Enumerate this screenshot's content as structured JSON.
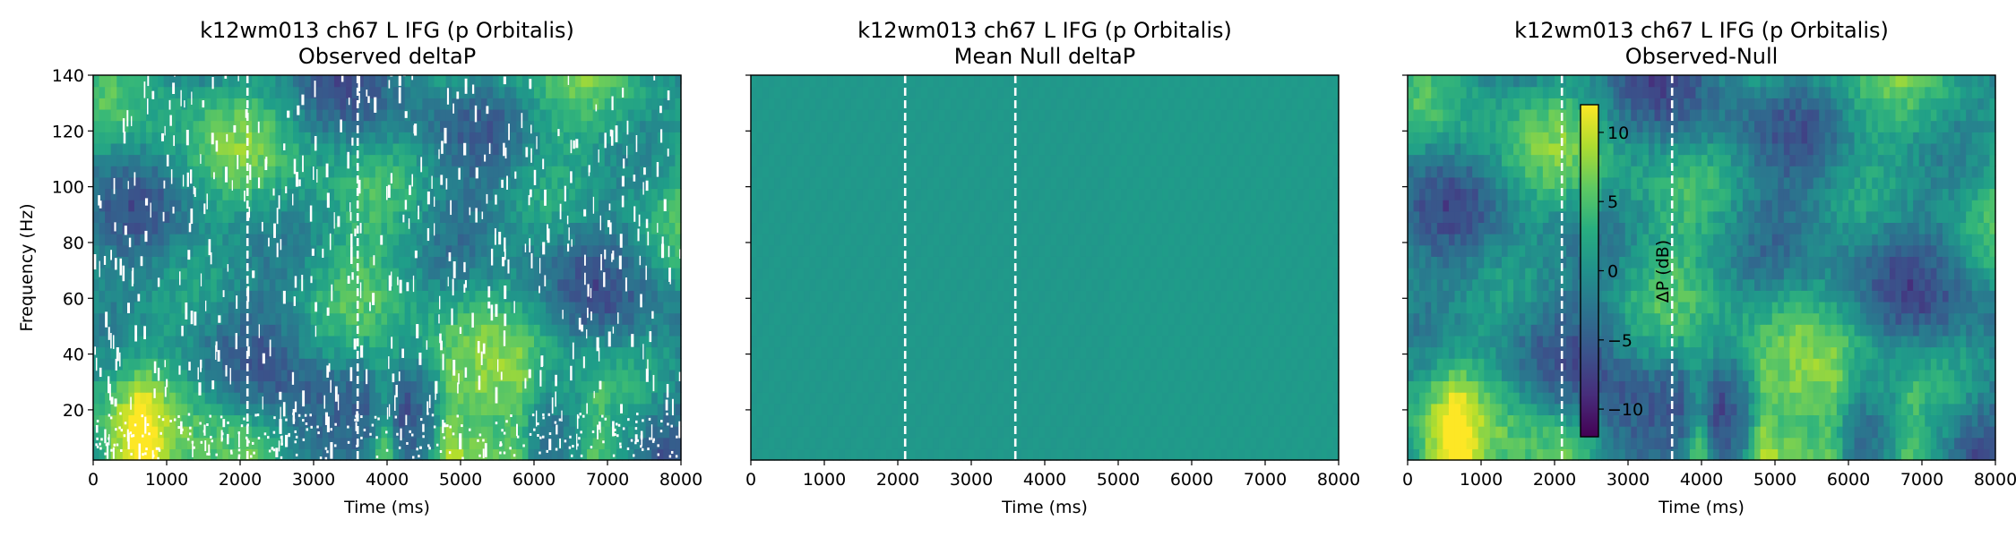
{
  "chart_data": [
    {
      "type": "heatmap",
      "title": "k12wm013 ch67 L IFG (p Orbitalis)",
      "subtitle": "Observed deltaP",
      "xlabel": "Time (ms)",
      "ylabel": "Frequency (Hz)",
      "xlim": [
        0,
        8000
      ],
      "ylim": [
        2,
        140
      ],
      "xticks": [
        "0",
        "1000",
        "2000",
        "3000",
        "4000",
        "5000",
        "6000",
        "7000",
        "8000"
      ],
      "yticks": [
        "20",
        "40",
        "60",
        "80",
        "100",
        "120",
        "140"
      ],
      "event_lines_ms": [
        2100,
        3600
      ],
      "colormap": "viridis",
      "masked_nonsignificant": true
    },
    {
      "type": "heatmap",
      "title": "k12wm013 ch67 L IFG (p Orbitalis)",
      "subtitle": "Mean Null deltaP",
      "xlabel": "Time (ms)",
      "ylabel": "",
      "xlim": [
        0,
        8000
      ],
      "ylim": [
        2,
        140
      ],
      "xticks": [
        "0",
        "1000",
        "2000",
        "3000",
        "4000",
        "5000",
        "6000",
        "7000",
        "8000"
      ],
      "yticks": [
        "",
        "",
        "",
        "",
        "",
        "",
        ""
      ],
      "event_lines_ms": [
        2100,
        3600
      ],
      "colormap": "viridis",
      "approx_value_db": 0.5
    },
    {
      "type": "heatmap",
      "title": "k12wm013 ch67 L IFG (p Orbitalis)",
      "subtitle": "Observed-Null",
      "xlabel": "Time (ms)",
      "ylabel": "",
      "xlim": [
        0,
        8000
      ],
      "ylim": [
        2,
        140
      ],
      "xticks": [
        "0",
        "1000",
        "2000",
        "3000",
        "4000",
        "5000",
        "6000",
        "7000",
        "8000"
      ],
      "yticks": [
        "",
        "",
        "",
        "",
        "",
        "",
        ""
      ],
      "event_lines_ms": [
        2100,
        3600
      ],
      "colormap": "viridis",
      "colorbar": {
        "label": "ΔP (dB)",
        "range": [
          -12,
          12
        ],
        "ticks": [
          10,
          5,
          0,
          -5,
          -10
        ],
        "tick_labels": [
          "10",
          "5",
          "0",
          "−5",
          "−10"
        ]
      }
    }
  ]
}
